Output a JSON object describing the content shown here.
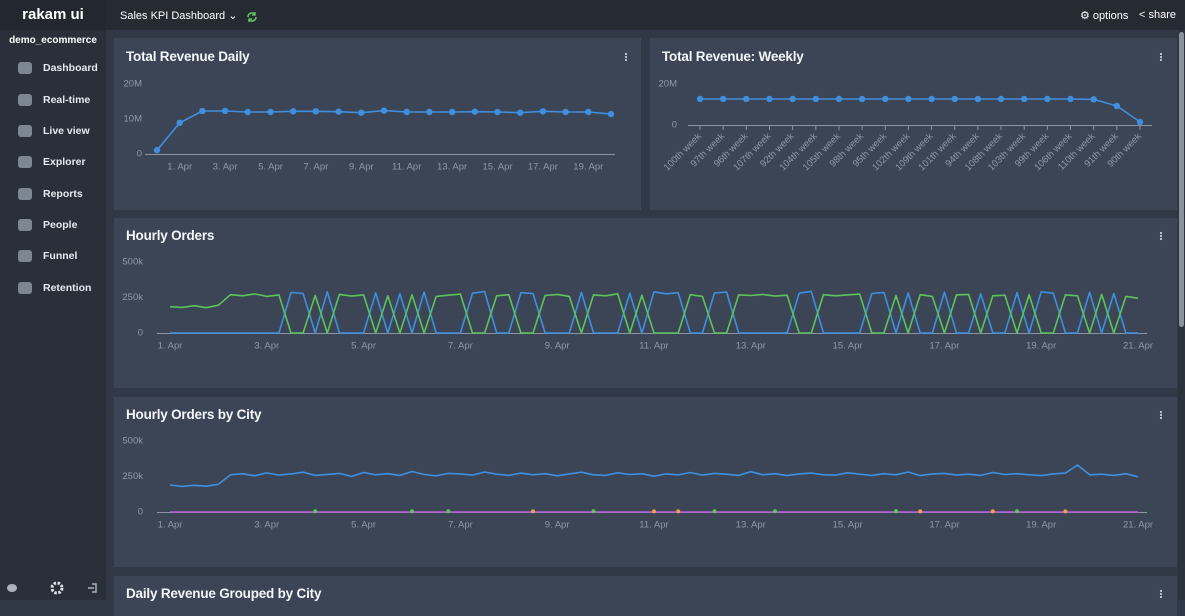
{
  "topbar": {
    "dashboard": "Sales KPI Dashboard",
    "options": "options",
    "share": "share"
  },
  "sidebar": {
    "brand": "rakam ui",
    "project": "demo_ecommerce",
    "items": [
      "Dashboard",
      "Real-time",
      "Live view",
      "Explorer",
      "Reports",
      "People",
      "Funnel",
      "Retention"
    ]
  },
  "chart_data": [
    {
      "type": "line",
      "title": "Total Revenue Daily",
      "markers": true,
      "categories": [
        null,
        "1. Apr",
        null,
        "3. Apr",
        null,
        "5. Apr",
        null,
        "7. Apr",
        null,
        "9. Apr",
        null,
        "11. Apr",
        null,
        "13. Apr",
        null,
        "15. Apr",
        null,
        "17. Apr",
        null,
        "19. Apr",
        null
      ],
      "series": [
        {
          "color": "#3f8fde",
          "values": [
            1.1,
            8.9,
            12.3,
            12.3,
            12,
            12,
            12.2,
            12.2,
            12.1,
            11.8,
            12.4,
            12,
            12,
            12,
            12.1,
            12,
            11.8,
            12.2,
            12,
            12,
            11.4
          ]
        }
      ],
      "ylim": [
        0,
        20
      ],
      "yticks": [
        0,
        {
          "value": 10,
          "label": "10M"
        },
        {
          "value": 20,
          "label": "20M"
        }
      ]
    },
    {
      "type": "line",
      "title": "Total Revenue: Weekly",
      "markers": true,
      "categories": [
        "100th week",
        "97th week",
        "96th week",
        "107th week",
        "92th week",
        "104th week",
        "105th week",
        "98th week",
        "95th week",
        "102th week",
        "109th week",
        "101th week",
        "94th week",
        "108th week",
        "103th week",
        "99th week",
        "106th week",
        "110th week",
        "91th week",
        "90th week"
      ],
      "series": [
        {
          "color": "#3f8fde",
          "values": [
            12.7,
            12.7,
            12.7,
            12.7,
            12.7,
            12.7,
            12.7,
            12.7,
            12.7,
            12.7,
            12.7,
            12.7,
            12.7,
            12.7,
            12.7,
            12.7,
            12.7,
            12.5,
            9.3,
            1.5
          ]
        }
      ],
      "ylim": [
        0,
        20
      ],
      "yticks": [
        0,
        {
          "value": 20,
          "label": "20M"
        }
      ]
    },
    {
      "type": "line",
      "title": "Hourly Orders",
      "categories": [
        "1. Apr",
        null,
        null,
        null,
        null,
        null,
        null,
        null,
        "3. Apr",
        null,
        null,
        null,
        null,
        null,
        null,
        null,
        "5. Apr",
        null,
        null,
        null,
        null,
        null,
        null,
        null,
        "7. Apr",
        null,
        null,
        null,
        null,
        null,
        null,
        null,
        "9. Apr",
        null,
        null,
        null,
        null,
        null,
        null,
        null,
        "11. Apr",
        null,
        null,
        null,
        null,
        null,
        null,
        null,
        "13. Apr",
        null,
        null,
        null,
        null,
        null,
        null,
        null,
        "15. Apr",
        null,
        null,
        null,
        null,
        null,
        null,
        null,
        "17. Apr",
        null,
        null,
        null,
        null,
        null,
        null,
        null,
        "19. Apr",
        null,
        null,
        null,
        null,
        null,
        null,
        null,
        "21. Apr"
      ],
      "series": [
        {
          "color": "#3f8fde",
          "values": [
            0,
            0,
            0,
            0,
            0,
            0,
            0,
            0,
            0,
            0,
            285,
            278,
            0,
            290,
            0,
            0,
            0,
            282,
            0,
            276,
            0,
            288,
            0,
            0,
            0,
            280,
            292,
            0,
            0,
            284,
            278,
            0,
            0,
            0,
            286,
            0,
            0,
            0,
            280,
            0,
            290,
            276,
            284,
            0,
            0,
            282,
            288,
            0,
            0,
            0,
            0,
            0,
            280,
            294,
            0,
            0,
            0,
            0,
            278,
            286,
            0,
            282,
            0,
            0,
            288,
            0,
            0,
            276,
            0,
            0,
            284,
            0,
            290,
            280,
            0,
            0,
            286,
            0,
            278,
            0,
            0
          ]
        },
        {
          "color": "#5cc45a",
          "values": [
            185,
            180,
            192,
            178,
            196,
            270,
            262,
            275,
            258,
            268,
            0,
            0,
            265,
            0,
            272,
            260,
            268,
            0,
            262,
            0,
            270,
            0,
            258,
            266,
            274,
            0,
            0,
            262,
            270,
            0,
            0,
            264,
            272,
            258,
            0,
            268,
            262,
            276,
            0,
            266,
            0,
            0,
            0,
            270,
            258,
            0,
            0,
            268,
            264,
            272,
            260,
            266,
            0,
            0,
            270,
            262,
            268,
            274,
            0,
            0,
            264,
            0,
            270,
            258,
            0,
            268,
            272,
            0,
            262,
            266,
            0,
            270,
            0,
            0,
            268,
            262,
            0,
            272,
            0,
            258,
            245
          ]
        }
      ],
      "ylim": [
        0,
        500
      ],
      "yticks": [
        0,
        {
          "value": 250,
          "label": "250k"
        },
        {
          "value": 500,
          "label": "500k"
        }
      ]
    },
    {
      "type": "line",
      "title": "Hourly Orders by City",
      "categories": [
        "1. Apr",
        null,
        null,
        null,
        null,
        null,
        null,
        null,
        "3. Apr",
        null,
        null,
        null,
        null,
        null,
        null,
        null,
        "5. Apr",
        null,
        null,
        null,
        null,
        null,
        null,
        null,
        "7. Apr",
        null,
        null,
        null,
        null,
        null,
        null,
        null,
        "9. Apr",
        null,
        null,
        null,
        null,
        null,
        null,
        null,
        "11. Apr",
        null,
        null,
        null,
        null,
        null,
        null,
        null,
        "13. Apr",
        null,
        null,
        null,
        null,
        null,
        null,
        null,
        "15. Apr",
        null,
        null,
        null,
        null,
        null,
        null,
        null,
        "17. Apr",
        null,
        null,
        null,
        null,
        null,
        null,
        null,
        "19. Apr",
        null,
        null,
        null,
        null,
        null,
        null,
        null,
        "21. Apr"
      ],
      "series": [
        {
          "color": "#3f8fde",
          "values": [
            190,
            180,
            188,
            182,
            195,
            262,
            270,
            255,
            275,
            260,
            268,
            280,
            258,
            265,
            272,
            250,
            278,
            262,
            270,
            258,
            285,
            264,
            255,
            272,
            268,
            260,
            282,
            266,
            258,
            274,
            262,
            270,
            255,
            268,
            280,
            262,
            258,
            276,
            264,
            270,
            252,
            268,
            262,
            278,
            260,
            272,
            266,
            258,
            284,
            262,
            270,
            256,
            268,
            274,
            262,
            260,
            276,
            266,
            258,
            270,
            262,
            282,
            256,
            268,
            272,
            260,
            266,
            258,
            278,
            264,
            270,
            262,
            256,
            268,
            274,
            330,
            262,
            266,
            258,
            270,
            248
          ]
        },
        {
          "color": "#b65fd6",
          "values": [
            0,
            0,
            0,
            0,
            0,
            0,
            0,
            0,
            0,
            0,
            0,
            0,
            0,
            0,
            0,
            0,
            0,
            0,
            0,
            0,
            0,
            0,
            0,
            0,
            0,
            0,
            0,
            0,
            0,
            0,
            0,
            0,
            0,
            0,
            0,
            0,
            0,
            0,
            0,
            0,
            0,
            0,
            0,
            0,
            0,
            0,
            0,
            0,
            0,
            0,
            0,
            0,
            0,
            0,
            0,
            0,
            0,
            0,
            0,
            0,
            0,
            0,
            0,
            0,
            0,
            0,
            0,
            0,
            0,
            0,
            0,
            0,
            0,
            0,
            0,
            0,
            0,
            0,
            0,
            0,
            0
          ]
        },
        {
          "color": "#5cc45a",
          "values": [
            null,
            null,
            null,
            null,
            null,
            null,
            null,
            null,
            null,
            null,
            null,
            null,
            5,
            null,
            null,
            null,
            null,
            null,
            null,
            null,
            5,
            null,
            null,
            5,
            null,
            null,
            null,
            null,
            null,
            null,
            null,
            null,
            null,
            null,
            null,
            5,
            null,
            null,
            null,
            null,
            null,
            null,
            null,
            null,
            null,
            5,
            null,
            null,
            null,
            null,
            5,
            null,
            null,
            null,
            null,
            null,
            null,
            null,
            null,
            null,
            5,
            null,
            null,
            null,
            null,
            null,
            null,
            null,
            null,
            null,
            5,
            null,
            null,
            null,
            null,
            null,
            null,
            null,
            null,
            null,
            null
          ]
        },
        {
          "color": "#f0a04a",
          "values": [
            null,
            null,
            null,
            null,
            null,
            null,
            null,
            null,
            null,
            null,
            null,
            null,
            null,
            null,
            null,
            null,
            null,
            null,
            null,
            null,
            null,
            null,
            null,
            null,
            null,
            null,
            null,
            null,
            null,
            null,
            4,
            null,
            null,
            null,
            null,
            null,
            null,
            null,
            null,
            null,
            4,
            null,
            4,
            null,
            null,
            null,
            null,
            null,
            null,
            null,
            null,
            null,
            null,
            null,
            null,
            null,
            null,
            null,
            null,
            null,
            null,
            null,
            4,
            null,
            null,
            null,
            null,
            null,
            4,
            null,
            null,
            null,
            null,
            null,
            4,
            null,
            null,
            null,
            null,
            null,
            null
          ]
        }
      ],
      "ylim": [
        0,
        500
      ],
      "yticks": [
        0,
        {
          "value": 250,
          "label": "250k"
        },
        {
          "value": 500,
          "label": "500k"
        }
      ]
    }
  ],
  "next_widget": {
    "title": "Daily Revenue Grouped by City"
  }
}
